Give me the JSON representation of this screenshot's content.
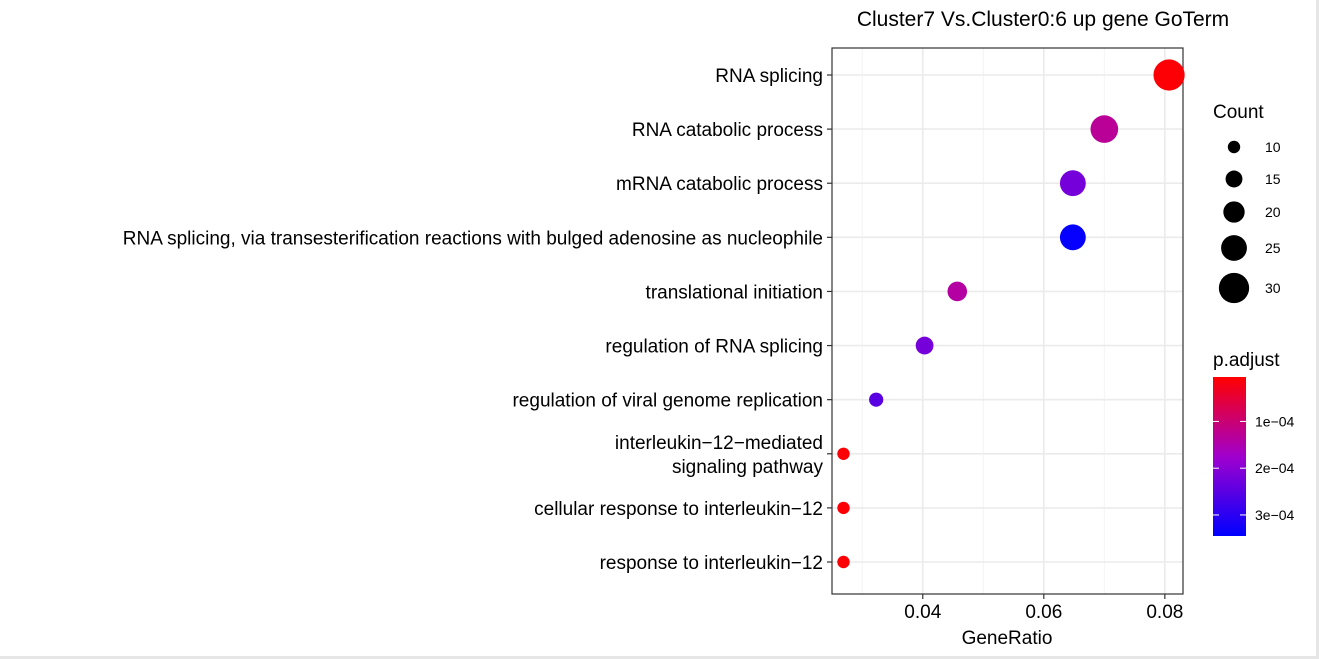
{
  "chart_data": {
    "type": "scatter",
    "title": "Cluster7 Vs.Cluster0:6 up gene GoTerm",
    "xlabel": "GeneRatio",
    "ylabel": "",
    "xlim": [
      0.025,
      0.083
    ],
    "x_ticks": [
      {
        "value": 0.04,
        "label": "0.04"
      },
      {
        "value": 0.06,
        "label": "0.06"
      },
      {
        "value": 0.08,
        "label": "0.08"
      }
    ],
    "grid": true,
    "terms": [
      {
        "label_lines": [
          "RNA splicing"
        ],
        "gene_ratio": 0.0807,
        "count": 31,
        "p_adjust": 1e-05
      },
      {
        "label_lines": [
          "RNA catabolic process"
        ],
        "gene_ratio": 0.07,
        "count": 27,
        "p_adjust": 0.00013
      },
      {
        "label_lines": [
          "mRNA catabolic process"
        ],
        "gene_ratio": 0.0648,
        "count": 25,
        "p_adjust": 0.00022
      },
      {
        "label_lines": [
          "RNA splicing, via transesterification reactions with bulged adenosine as nucleophile"
        ],
        "gene_ratio": 0.0648,
        "count": 25,
        "p_adjust": 0.00034
      },
      {
        "label_lines": [
          "translational initiation"
        ],
        "gene_ratio": 0.0457,
        "count": 18,
        "p_adjust": 0.00014
      },
      {
        "label_lines": [
          "regulation of RNA splicing"
        ],
        "gene_ratio": 0.0403,
        "count": 16,
        "p_adjust": 0.00022
      },
      {
        "label_lines": [
          "regulation of viral genome replication"
        ],
        "gene_ratio": 0.0323,
        "count": 12,
        "p_adjust": 0.00025
      },
      {
        "label_lines": [
          "interleukin−12−mediated",
          "signaling pathway"
        ],
        "gene_ratio": 0.0269,
        "count": 10,
        "p_adjust": 1e-05
      },
      {
        "label_lines": [
          "cellular response to interleukin−12"
        ],
        "gene_ratio": 0.0269,
        "count": 10,
        "p_adjust": 1e-05
      },
      {
        "label_lines": [
          "response to interleukin−12"
        ],
        "gene_ratio": 0.0269,
        "count": 10,
        "p_adjust": 1e-05
      }
    ],
    "size_legend": {
      "title": "Count",
      "values": [
        10,
        15,
        20,
        25,
        30
      ],
      "labels": [
        "10",
        "15",
        "20",
        "25",
        "30"
      ]
    },
    "color_legend": {
      "title": "p.adjust",
      "range": [
        5e-06,
        0.000345
      ],
      "low_color": "#ff0000",
      "high_color": "#0000ff",
      "ticks": [
        {
          "value": 0.0001,
          "label": "1e−04"
        },
        {
          "value": 0.0002,
          "label": "2e−04"
        },
        {
          "value": 0.0003,
          "label": "3e−04"
        }
      ]
    }
  }
}
